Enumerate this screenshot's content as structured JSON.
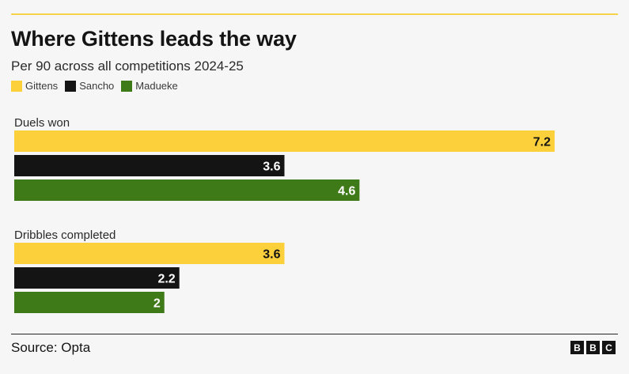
{
  "header": {
    "title": "Where Gittens leads the way",
    "subtitle": "Per 90 across all competitions 2024-25"
  },
  "footer": {
    "source": "Source: Opta",
    "logo": [
      "B",
      "B",
      "C"
    ]
  },
  "chart_data": {
    "type": "bar",
    "orientation": "horizontal",
    "title": "Where Gittens leads the way",
    "subtitle": "Per 90 across all competitions 2024-25",
    "categories": [
      "Duels won",
      "Dribbles completed"
    ],
    "series": [
      {
        "name": "Gittens",
        "color": "#fcd03b",
        "values": [
          7.2,
          3.6
        ]
      },
      {
        "name": "Sancho",
        "color": "#141414",
        "values": [
          3.6,
          2.2
        ]
      },
      {
        "name": "Madueke",
        "color": "#3f7a18",
        "values": [
          4.6,
          2
        ]
      }
    ],
    "xlim": [
      0,
      7.2
    ],
    "grid": false,
    "legend_position": "top-left",
    "data_labels": true
  }
}
